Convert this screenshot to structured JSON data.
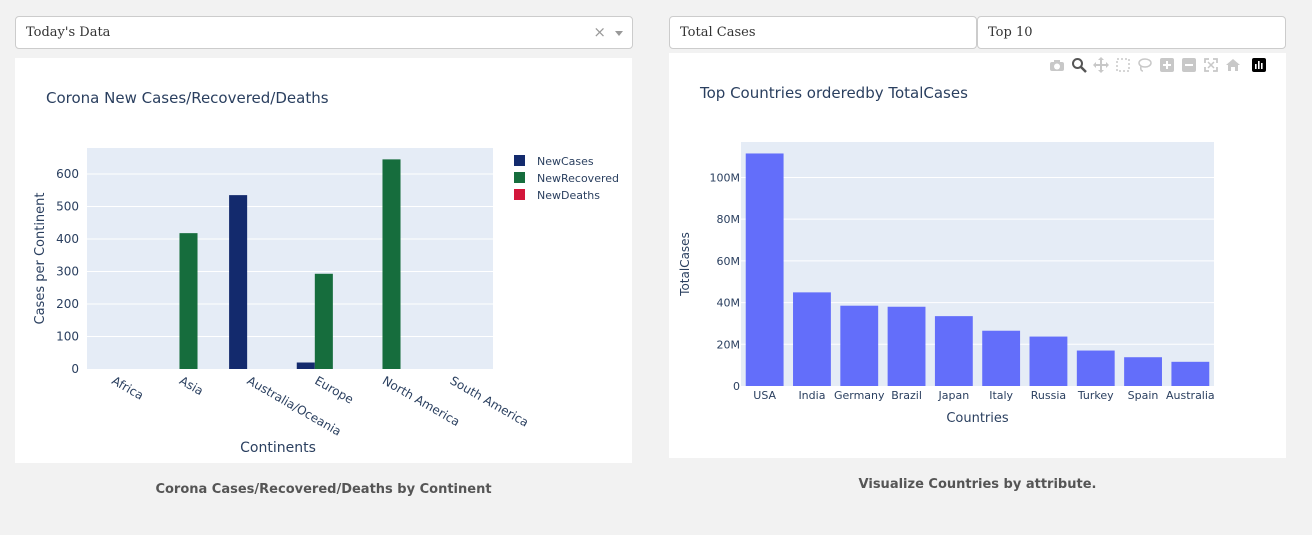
{
  "left": {
    "dropdown": {
      "value": "Today's Data",
      "clear": "×"
    },
    "caption": "Corona Cases/Recovered/Deaths by Continent"
  },
  "right": {
    "dropdown_attr": {
      "value": "Total Cases"
    },
    "dropdown_top": {
      "value": "Top 10"
    },
    "caption": "Visualize Countries by attribute.",
    "modebar_icons": [
      "camera-icon",
      "zoom-icon",
      "pan-icon",
      "box-select-icon",
      "lasso-icon",
      "zoom-in-icon",
      "zoom-out-icon",
      "autoscale-icon",
      "reset-axes-icon",
      "plotly-logo-icon"
    ]
  },
  "chart_data": [
    {
      "type": "bar",
      "title": "Corona New Cases/Recovered/Deaths",
      "xlabel": "Continents",
      "ylabel": "Cases per Continent",
      "categories": [
        "Africa",
        "Asia",
        "Australia/Oceania",
        "Europe",
        "North America",
        "South America"
      ],
      "series": [
        {
          "name": "NewCases",
          "color": "#132a6d",
          "values": [
            0,
            0,
            535,
            20,
            0,
            0
          ]
        },
        {
          "name": "NewRecovered",
          "color": "#166d3d",
          "values": [
            0,
            418,
            0,
            293,
            645,
            0
          ]
        },
        {
          "name": "NewDeaths",
          "color": "#d3163b",
          "values": [
            0,
            0,
            0,
            0,
            0,
            0
          ]
        }
      ],
      "ylim": [
        0,
        680
      ],
      "yticks": [
        0,
        100,
        200,
        300,
        400,
        500,
        600
      ],
      "grid": true,
      "legend": "right",
      "background": "#e5ecf6"
    },
    {
      "type": "bar",
      "title": "Top Countries orderedby TotalCases",
      "xlabel": "Countries",
      "ylabel": "TotalCases",
      "categories": [
        "USA",
        "India",
        "Germany",
        "Brazil",
        "Japan",
        "Italy",
        "Russia",
        "Turkey",
        "Spain",
        "Australia"
      ],
      "values": [
        111500000,
        44900000,
        38500000,
        38000000,
        33500000,
        26500000,
        23700000,
        17000000,
        13800000,
        11600000
      ],
      "ylim": [
        0,
        117000000
      ],
      "yticks": [
        0,
        20000000,
        40000000,
        60000000,
        80000000,
        100000000
      ],
      "ytick_labels": [
        "0",
        "20M",
        "40M",
        "60M",
        "80M",
        "100M"
      ],
      "color": "#636efa",
      "grid": true,
      "background": "#e5ecf6"
    }
  ]
}
